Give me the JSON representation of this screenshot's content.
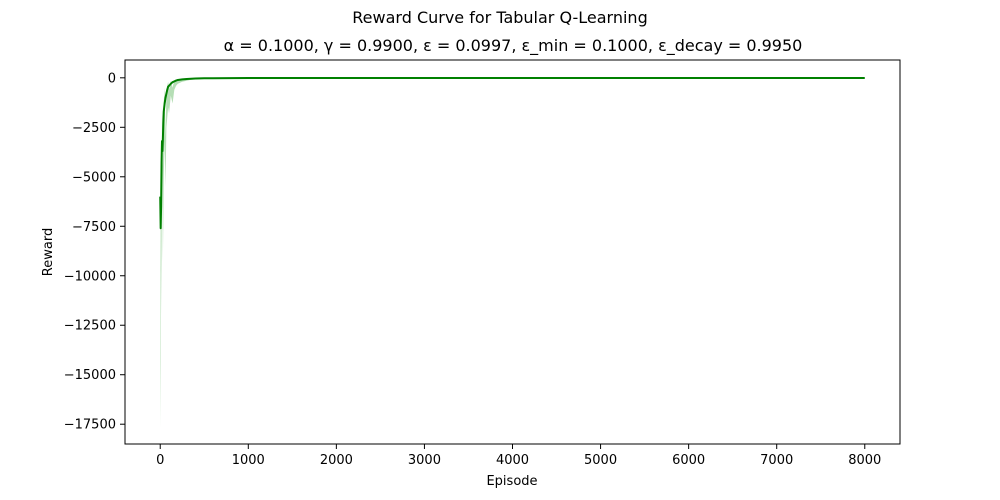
{
  "chart_data": {
    "type": "line",
    "title": "Reward Curve for Tabular Q-Learning",
    "subtitle": "α = 0.1000, γ = 0.9900, ε = 0.0997, ε_min = 0.1000, ε_decay = 0.9950",
    "xlabel": "Episode",
    "ylabel": "Reward",
    "xlim": [
      -400,
      8400
    ],
    "ylim": [
      -18500,
      900
    ],
    "x_ticks": [
      0,
      1000,
      2000,
      3000,
      4000,
      5000,
      6000,
      7000,
      8000
    ],
    "x_tick_labels": [
      "0",
      "1000",
      "2000",
      "3000",
      "4000",
      "5000",
      "6000",
      "7000",
      "8000"
    ],
    "y_ticks": [
      0,
      -2500,
      -5000,
      -7500,
      -10000,
      -12500,
      -15000,
      -17500
    ],
    "y_tick_labels": [
      "0",
      "−2500",
      "−5000",
      "−7500",
      "−10000",
      "−12500",
      "−15000",
      "−17500"
    ],
    "grid": false,
    "colors": {
      "smoothed": "#008000",
      "raw": "#2ca02c"
    },
    "series": [
      {
        "role": "raw",
        "x": [
          0,
          5,
          10,
          15,
          20,
          25,
          30,
          40,
          50,
          60,
          70,
          80,
          90,
          100,
          120,
          140,
          160,
          180,
          200,
          250,
          300,
          350,
          400,
          500,
          600,
          700,
          800,
          1000,
          2000,
          3000,
          4000,
          5000,
          6000,
          7000,
          8000
        ],
        "upper": [
          -14200,
          -7000,
          -3000,
          -9200,
          -1500,
          -2500,
          -4500,
          -1200,
          -500,
          -3000,
          -800,
          -400,
          -200,
          -600,
          -150,
          -500,
          -120,
          -100,
          -80,
          -60,
          -50,
          -40,
          -30,
          -25,
          -20,
          -18,
          -15,
          -12,
          -10,
          -10,
          -10,
          -10,
          -10,
          -10,
          -10
        ],
        "lower": [
          -17700,
          -14300,
          -8000,
          -12000,
          -4500,
          -5500,
          -9300,
          -5000,
          -3200,
          -5500,
          -2500,
          -2000,
          -1500,
          -1800,
          -900,
          -1300,
          -600,
          -400,
          -300,
          -200,
          -150,
          -100,
          -80,
          -60,
          -50,
          -40,
          -35,
          -30,
          -25,
          -25,
          -25,
          -25,
          -25,
          -25,
          -25
        ]
      },
      {
        "role": "smoothed",
        "x": [
          0,
          5,
          10,
          15,
          20,
          25,
          30,
          35,
          40,
          45,
          50,
          60,
          70,
          80,
          90,
          100,
          120,
          140,
          160,
          180,
          200,
          250,
          300,
          350,
          400,
          500,
          600,
          800,
          1000,
          2000,
          3000,
          4000,
          5000,
          6000,
          7000,
          8000
        ],
        "y": [
          -6000,
          -7600,
          -6500,
          -4300,
          -3200,
          -3700,
          -3100,
          -2300,
          -1700,
          -1500,
          -1300,
          -1000,
          -800,
          -600,
          -450,
          -400,
          -300,
          -220,
          -180,
          -140,
          -110,
          -80,
          -60,
          -45,
          -35,
          -25,
          -20,
          -15,
          -12,
          -10,
          -10,
          -10,
          -10,
          -10,
          -10,
          -10
        ]
      }
    ]
  }
}
